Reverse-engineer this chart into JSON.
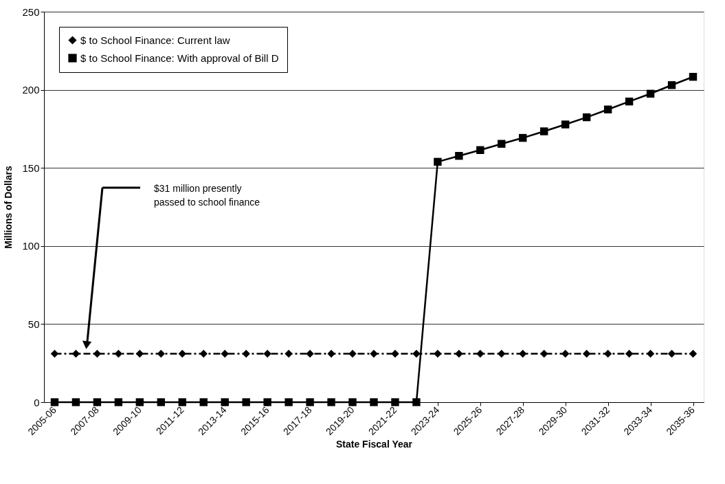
{
  "chart_data": {
    "type": "line",
    "xlabel": "State Fiscal Year",
    "ylabel": "Millions of Dollars",
    "categories": [
      "2005-06",
      null,
      "2007-08",
      null,
      "2009-10",
      null,
      "2011-12",
      null,
      "2013-14",
      null,
      "2015-16",
      null,
      "2017-18",
      null,
      "2019-20",
      null,
      "2021-22",
      null,
      "2023-24",
      null,
      "2025-26",
      null,
      "2027-28",
      null,
      "2029-30",
      null,
      "2031-32",
      null,
      "2033-34",
      null,
      "2035-36"
    ],
    "series": [
      {
        "name": "$ to School Finance: Current law",
        "color": "#000000",
        "marker": "diamond",
        "line_style": "dashed",
        "values": [
          31,
          31,
          31,
          31,
          31,
          31,
          31,
          31,
          31,
          31,
          31,
          31,
          31,
          31,
          31,
          31,
          31,
          31,
          31,
          31,
          31,
          31,
          31,
          31,
          31,
          31,
          31,
          31,
          31,
          31,
          31
        ]
      },
      {
        "name": "$ to School Finance: With approval of Bill D",
        "color": "#000000",
        "marker": "square",
        "line_style": "solid",
        "values": [
          0,
          0,
          0,
          0,
          0,
          0,
          0,
          0,
          0,
          0,
          0,
          0,
          0,
          0,
          0,
          0,
          0,
          0,
          153.9,
          157.7,
          161.4,
          165.4,
          169.2,
          173.4,
          177.8,
          182.4,
          187.4,
          192.5,
          197.5,
          203.0,
          208.3
        ]
      }
    ],
    "ylim": [
      0,
      250
    ],
    "yticks": [
      0,
      50,
      100,
      150,
      200,
      250
    ],
    "grid": "y",
    "legend": "top left",
    "annotations": [
      "$31 million presently passed to school finance"
    ]
  }
}
